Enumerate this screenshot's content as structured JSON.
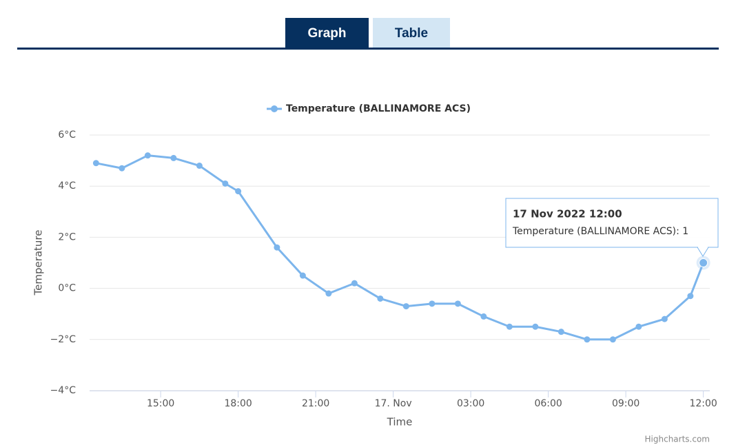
{
  "tabs": [
    "Graph",
    "Table"
  ],
  "chart_data": {
    "type": "line",
    "x": [
      "2022-11-16T12:30",
      "2022-11-16T13:30",
      "2022-11-16T14:30",
      "2022-11-16T15:30",
      "2022-11-16T16:30",
      "2022-11-16T17:30",
      "2022-11-16T18:00",
      "2022-11-16T19:30",
      "2022-11-16T20:30",
      "2022-11-16T21:30",
      "2022-11-16T22:30",
      "2022-11-16T23:30",
      "2022-11-17T00:30",
      "2022-11-17T01:30",
      "2022-11-17T02:30",
      "2022-11-17T03:30",
      "2022-11-17T04:30",
      "2022-11-17T05:30",
      "2022-11-17T06:30",
      "2022-11-17T07:30",
      "2022-11-17T08:30",
      "2022-11-17T09:30",
      "2022-11-17T10:30",
      "2022-11-17T11:30",
      "2022-11-17T12:00"
    ],
    "series": [
      {
        "name": "Temperature (BALLINAMORE ACS)",
        "color": "#7cb5ec",
        "values": [
          4.9,
          4.7,
          5.2,
          5.1,
          4.8,
          4.1,
          3.8,
          1.6,
          0.5,
          -0.2,
          0.2,
          -0.4,
          -0.7,
          -0.6,
          -0.6,
          -1.1,
          -1.5,
          -1.5,
          -1.7,
          -2.0,
          -2.0,
          -1.5,
          -1.2,
          -0.3,
          1
        ]
      }
    ],
    "xlim": [
      "2022-11-16T12:15",
      "2022-11-17T12:15"
    ],
    "xticks": [
      {
        "value": "2022-11-16T15:00",
        "label": "15:00"
      },
      {
        "value": "2022-11-16T18:00",
        "label": "18:00"
      },
      {
        "value": "2022-11-16T21:00",
        "label": "21:00"
      },
      {
        "value": "2022-11-17T00:00",
        "label": "17. Nov"
      },
      {
        "value": "2022-11-17T03:00",
        "label": "03:00"
      },
      {
        "value": "2022-11-17T06:00",
        "label": "06:00"
      },
      {
        "value": "2022-11-17T09:00",
        "label": "09:00"
      },
      {
        "value": "2022-11-17T12:00",
        "label": "12:00"
      }
    ],
    "ylim": [
      -4,
      6
    ],
    "yticks": [
      {
        "value": -4,
        "label": "−4°C"
      },
      {
        "value": -2,
        "label": "−2°C"
      },
      {
        "value": 0,
        "label": "0°C"
      },
      {
        "value": 2,
        "label": "2°C"
      },
      {
        "value": 4,
        "label": "4°C"
      },
      {
        "value": 6,
        "label": "6°C"
      }
    ],
    "ylabel": "Temperature",
    "xlabel": "Time",
    "grid": true,
    "tooltip": {
      "title": "17 Nov 2022 12:00",
      "text": "Temperature (BALLINAMORE ACS): 1"
    },
    "credits": "Highcharts.com"
  }
}
